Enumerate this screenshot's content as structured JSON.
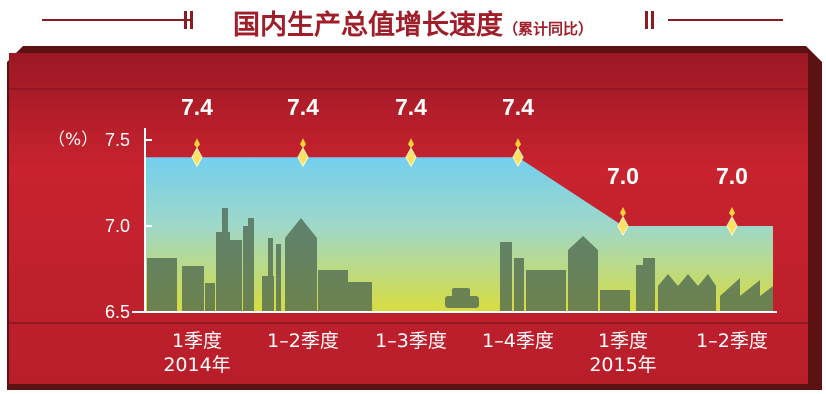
{
  "chart_data": {
    "type": "area",
    "title": "国内生产总值增长速度",
    "subtitle": "（累计同比）",
    "ylabel": "（%）",
    "ylim": [
      6.5,
      7.5
    ],
    "yticks": [
      "7.5",
      "7.0",
      "6.5"
    ],
    "categories": [
      "1季度\n2014年",
      "1–2季度",
      "1–3季度",
      "1–4季度",
      "1季度\n2015年",
      "1–2季度"
    ],
    "values": [
      7.4,
      7.4,
      7.4,
      7.4,
      7.0,
      7.0
    ],
    "data_labels": [
      "7.4",
      "7.4",
      "7.4",
      "7.4",
      "7.0",
      "7.0"
    ],
    "legend": "none",
    "grid": false
  },
  "colors": {
    "title": "#a01e2a",
    "background": "#c8232f",
    "sky_top": "#72cfee",
    "sky_bottom": "#d8dc3e",
    "silhouette": "#4f6a52",
    "label": "#ffffff",
    "marker": "#ffe066"
  }
}
